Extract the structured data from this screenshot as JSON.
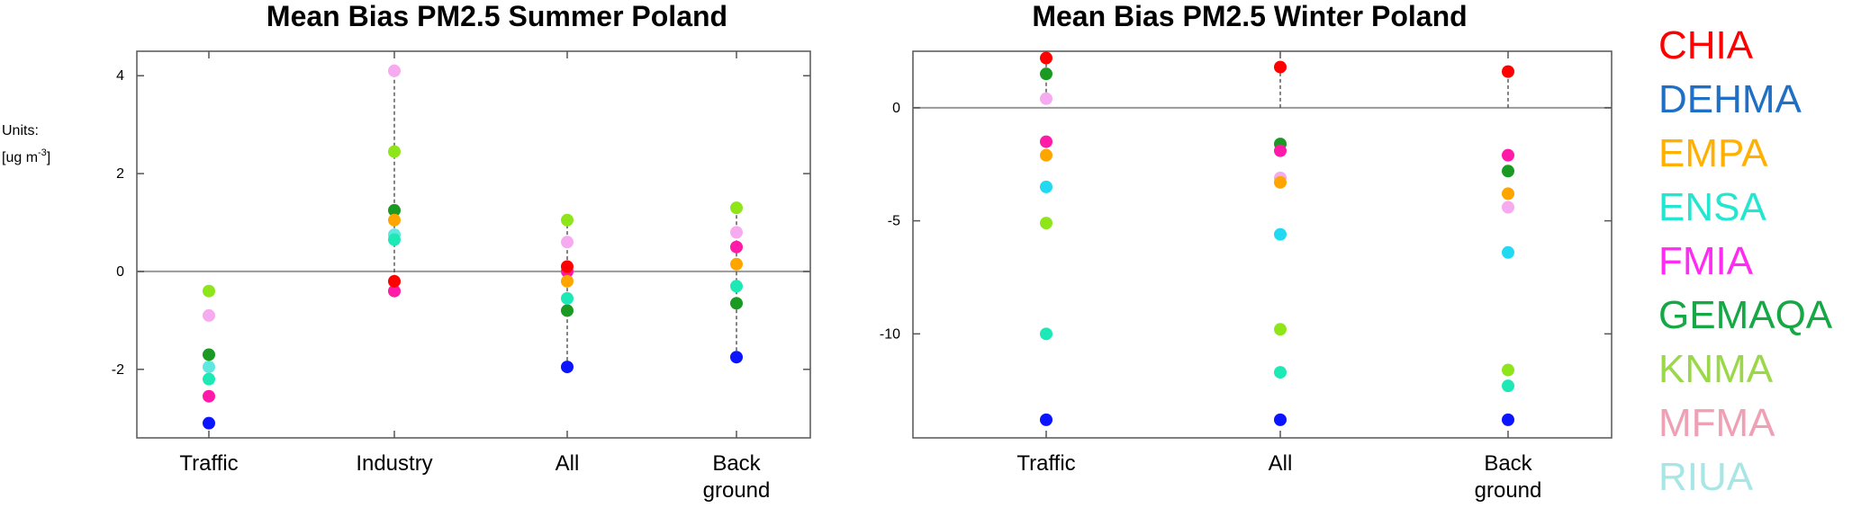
{
  "units": {
    "line1": "Units:",
    "line2": "[ug m",
    "sup": "-3",
    "close": "]"
  },
  "legend": [
    {
      "name": "CHIA",
      "color": "#ff0000"
    },
    {
      "name": "DEHMA",
      "color": "#1f6fc4"
    },
    {
      "name": "EMPA",
      "color": "#ffb000"
    },
    {
      "name": "ENSA",
      "color": "#22e6d0"
    },
    {
      "name": "FMIA",
      "color": "#ff2bf0"
    },
    {
      "name": "GEMAQA",
      "color": "#15a845"
    },
    {
      "name": "KNMA",
      "color": "#9ad84a"
    },
    {
      "name": "MFMA",
      "color": "#f0a0b4"
    },
    {
      "name": "RIUA",
      "color": "#a8e6e6"
    }
  ],
  "chart_data": [
    {
      "type": "scatter",
      "title": "Mean Bias PM2.5 Summer Poland",
      "categories": [
        "Traffic",
        "Industry",
        "All",
        "Back ground"
      ],
      "category_label_lines": [
        [
          "Traffic"
        ],
        [
          "Industry"
        ],
        [
          "All"
        ],
        [
          "Back",
          "ground"
        ]
      ],
      "ylim": [
        -3.4,
        4.5
      ],
      "yticks": [
        -2,
        0,
        2,
        4
      ],
      "yticklabels": [
        "-2",
        "0",
        "2",
        "4"
      ],
      "zero_line": true,
      "series": [
        {
          "name": "CHIA",
          "color": "#ff0000",
          "values": [
            null,
            -0.2,
            0.1,
            null
          ]
        },
        {
          "name": "DEHMA",
          "color": "#0a14ff",
          "values": [
            -3.1,
            null,
            -1.95,
            -1.75
          ]
        },
        {
          "name": "EMPA",
          "color": "#ffa500",
          "values": [
            null,
            1.05,
            -0.2,
            0.15
          ]
        },
        {
          "name": "ENSA",
          "color": "#1de9b6",
          "values": [
            -2.2,
            0.65,
            -0.55,
            -0.3
          ]
        },
        {
          "name": "FMIA",
          "color": "#ff1aa8",
          "values": [
            -2.55,
            -0.4,
            0.0,
            0.5
          ]
        },
        {
          "name": "GEMAQA",
          "color": "#1a9a22",
          "values": [
            -1.7,
            1.25,
            -0.8,
            -0.65
          ]
        },
        {
          "name": "KNMA",
          "color": "#8ee51a",
          "values": [
            -0.4,
            2.45,
            1.05,
            1.3
          ]
        },
        {
          "name": "MFMA",
          "color": "#f6aaf0",
          "values": [
            -0.9,
            4.1,
            0.6,
            0.8
          ]
        },
        {
          "name": "RIUA",
          "color": "#5fe8e0",
          "values": [
            -1.95,
            0.75,
            null,
            null
          ]
        }
      ],
      "dashed_ranges": [
        null,
        [
          -0.4,
          4.1
        ],
        [
          -1.95,
          1.05
        ],
        [
          -1.75,
          1.3
        ]
      ]
    },
    {
      "type": "scatter",
      "title": "Mean Bias PM2.5 Winter Poland",
      "categories": [
        "Traffic",
        "All",
        "Back ground"
      ],
      "category_label_lines": [
        [
          "Traffic"
        ],
        [
          "All"
        ],
        [
          "Back",
          "ground"
        ]
      ],
      "ylim": [
        -14.6,
        2.5
      ],
      "yticks": [
        -10,
        -5,
        0
      ],
      "yticklabels": [
        "-10",
        "-5",
        "0"
      ],
      "zero_line": true,
      "series": [
        {
          "name": "CHIA",
          "color": "#ff0000",
          "values": [
            2.2,
            1.8,
            1.6
          ]
        },
        {
          "name": "DEHMA",
          "color": "#0a14ff",
          "values": [
            -13.8,
            -13.8,
            -13.8
          ]
        },
        {
          "name": "EMPA",
          "color": "#ffa500",
          "values": [
            -2.1,
            -3.3,
            -3.8
          ]
        },
        {
          "name": "ENSA",
          "color": "#1de9b6",
          "values": [
            -10.0,
            -11.7,
            -12.3
          ]
        },
        {
          "name": "FMIA",
          "color": "#ff1aa8",
          "values": [
            -1.5,
            -1.9,
            -2.1
          ]
        },
        {
          "name": "GEMAQA",
          "color": "#1a9a22",
          "values": [
            1.5,
            -1.6,
            -2.8
          ]
        },
        {
          "name": "KNMA",
          "color": "#8ee51a",
          "values": [
            -5.1,
            -9.8,
            -11.6
          ]
        },
        {
          "name": "MFMA",
          "color": "#f6aaf0",
          "values": [
            0.4,
            -3.1,
            -4.4
          ]
        },
        {
          "name": "RIUA",
          "color": "#22d9f2",
          "values": [
            -3.5,
            -5.6,
            -6.4
          ]
        }
      ],
      "dashed_ranges": [
        [
          0.4,
          2.2
        ],
        [
          0.0,
          1.8
        ],
        [
          0.0,
          1.6
        ]
      ]
    }
  ]
}
